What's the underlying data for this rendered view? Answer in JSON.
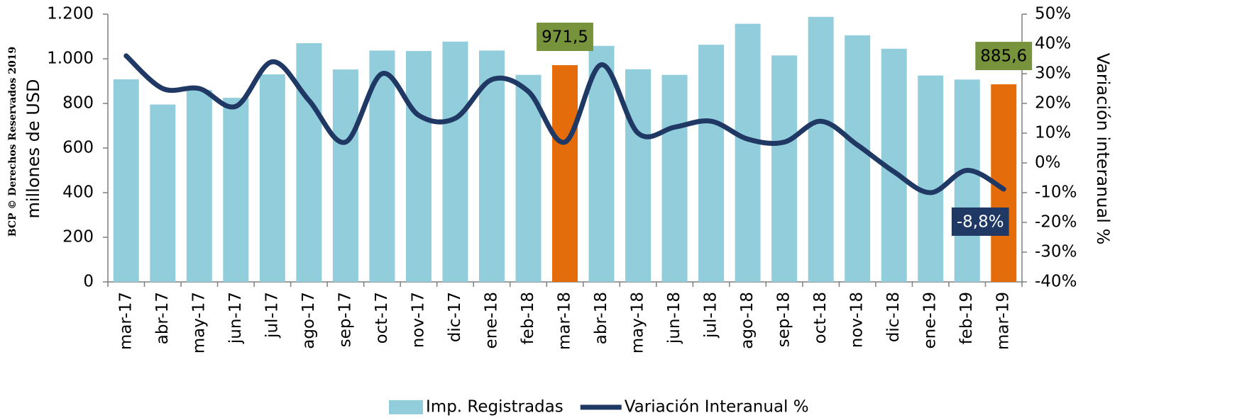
{
  "chart_data": {
    "type": "bar",
    "watermark": "BCP © Derechos Reservados 2019",
    "ylabel": "millones de USD",
    "y2label": "Variación interanual %",
    "categories": [
      "mar-17",
      "abr-17",
      "may-17",
      "jun-17",
      "jul-17",
      "ago-17",
      "sep-17",
      "oct-17",
      "nov-17",
      "dic-17",
      "ene-18",
      "feb-18",
      "mar-18",
      "abr-18",
      "may-18",
      "jun-18",
      "jul-18",
      "ago-18",
      "sep-18",
      "oct-18",
      "nov-18",
      "dic-18",
      "ene-19",
      "feb-19",
      "mar-19"
    ],
    "ylim": [
      0,
      1200
    ],
    "yticks": [
      0,
      200,
      400,
      600,
      800,
      {
        "value": 1000,
        "label": "1.000"
      },
      {
        "value": 1200,
        "label": "1.200"
      }
    ],
    "y2lim": [
      -40,
      50
    ],
    "y2ticks": [
      {
        "value": -40,
        "label": "-40%"
      },
      {
        "value": -30,
        "label": "-30%"
      },
      {
        "value": -20,
        "label": "-20%"
      },
      {
        "value": -10,
        "label": "-10%"
      },
      {
        "value": 0,
        "label": "0%"
      },
      {
        "value": 10,
        "label": "10%"
      },
      {
        "value": 20,
        "label": "20%"
      },
      {
        "value": 30,
        "label": "30%"
      },
      {
        "value": 40,
        "label": "40%"
      },
      {
        "value": 50,
        "label": "50%"
      }
    ],
    "legend": "bottom",
    "series": [
      {
        "name": "Imp. Registradas",
        "type": "bar",
        "color": "#92cddc",
        "label_color": "#77933c",
        "colors": [
          "#92cddc",
          "#92cddc",
          "#92cddc",
          "#92cddc",
          "#92cddc",
          "#92cddc",
          "#92cddc",
          "#92cddc",
          "#92cddc",
          "#92cddc",
          "#92cddc",
          "#92cddc",
          "#e46c0a",
          "#92cddc",
          "#92cddc",
          "#92cddc",
          "#92cddc",
          "#92cddc",
          "#92cddc",
          "#92cddc",
          "#92cddc",
          "#92cddc",
          "#92cddc",
          "#92cddc",
          "#e46c0a"
        ],
        "values": [
          908,
          795,
          860,
          825,
          930,
          1070,
          952,
          1037,
          1035,
          1077,
          1037,
          928,
          971.5,
          1058,
          953,
          928,
          1063,
          1157,
          1015,
          1188,
          1105,
          1045,
          925,
          907,
          885.6
        ],
        "value_labels": [
          null,
          null,
          null,
          null,
          null,
          null,
          null,
          null,
          null,
          null,
          null,
          null,
          "971,5",
          null,
          null,
          null,
          null,
          null,
          null,
          null,
          null,
          null,
          null,
          null,
          "885,6"
        ]
      },
      {
        "name": "Variación Interanual %",
        "type": "line",
        "axis": "y2",
        "color": "#1f3864",
        "label_color": "#1f3864",
        "values": [
          36,
          25,
          25,
          19,
          34,
          21,
          7,
          30,
          16,
          15,
          28,
          24,
          7,
          33,
          10,
          12,
          14,
          8,
          7,
          14,
          6,
          -3,
          -10,
          -2.5,
          -8.8
        ],
        "value_labels": [
          null,
          null,
          null,
          null,
          null,
          null,
          null,
          null,
          null,
          null,
          null,
          null,
          null,
          null,
          null,
          null,
          null,
          null,
          null,
          null,
          null,
          null,
          null,
          null,
          "-8,8%"
        ]
      }
    ]
  }
}
